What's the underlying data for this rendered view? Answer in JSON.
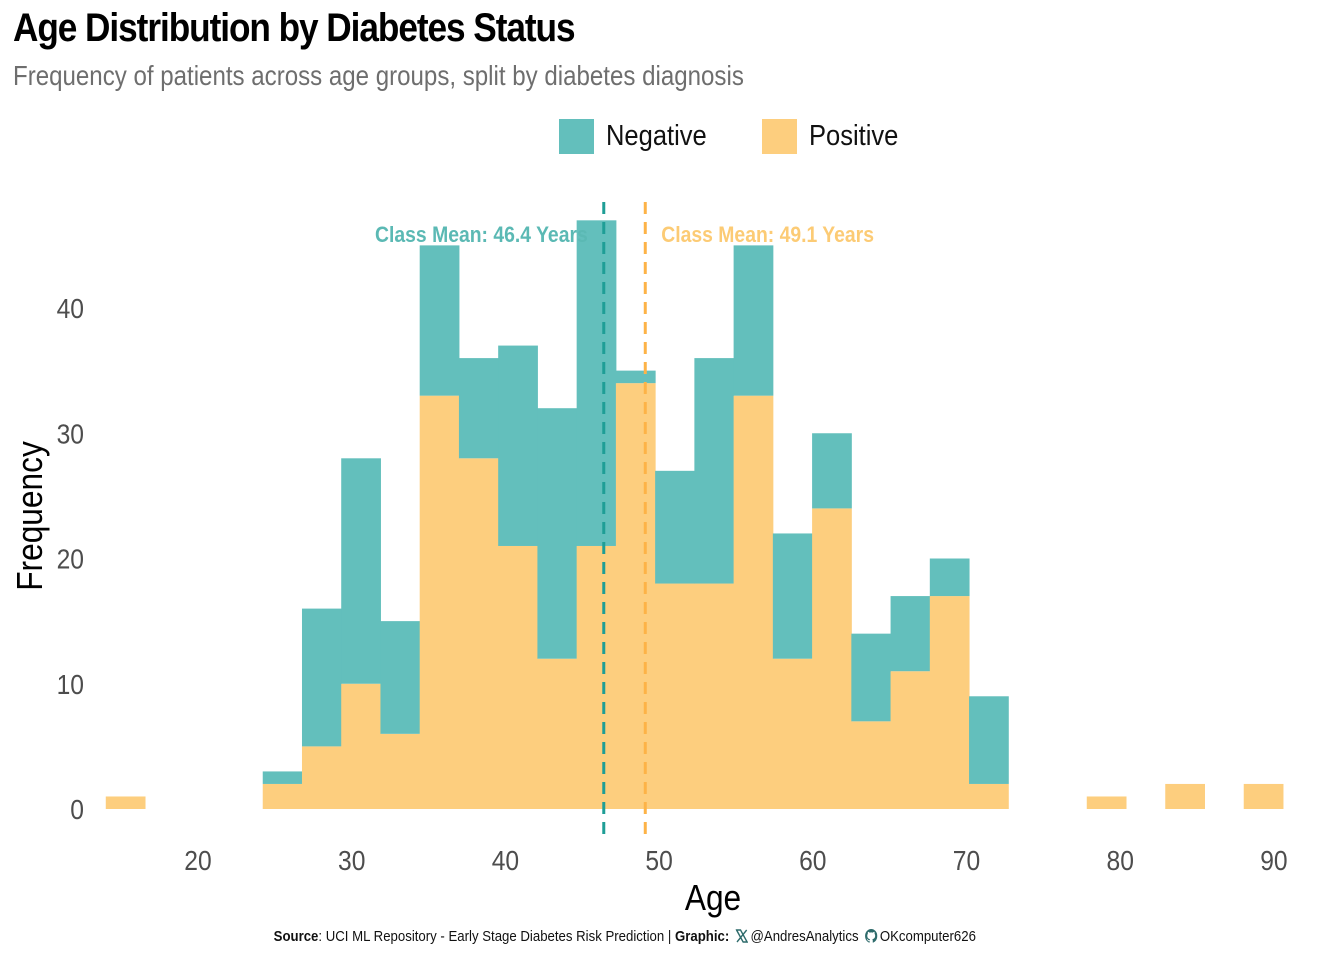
{
  "header": {
    "title": "Age Distribution by Diabetes Status",
    "subtitle": "Frequency of patients across age groups, split by diabetes diagnosis"
  },
  "legend": {
    "items": [
      {
        "label": "Negative",
        "color": "#63BFBC"
      },
      {
        "label": "Positive",
        "color": "#FDCE7E"
      }
    ]
  },
  "caption": {
    "source_label": "Source",
    "source_text": ": UCI ML Repository - Early Stage Diabetes Risk Prediction | ",
    "graphic_label": "Graphic:",
    "twitter_icon": "x-icon",
    "twitter_handle": "@AndresAnalytics",
    "github_icon": "github-icon",
    "github_handle": "OKcomputer626",
    "icon_color": "#2E6B6B"
  },
  "chart_data": {
    "type": "bar",
    "subtype": "stacked-histogram",
    "title": "Age Distribution by Diabetes Status",
    "subtitle": "Frequency of patients across age groups, split by diabetes diagnosis",
    "xlabel": "Age",
    "ylabel": "Frequency",
    "xlim": [
      14.0,
      90.6
    ],
    "ylim": [
      0,
      47
    ],
    "xticks": [
      20,
      30,
      40,
      50,
      60,
      70,
      80,
      90
    ],
    "yticks": [
      0,
      10,
      20,
      30,
      40
    ],
    "grid": false,
    "legend_position": "top",
    "bins": {
      "start": 14.0,
      "width": 2.553,
      "count": 30
    },
    "stack_order": [
      "Positive",
      "Negative"
    ],
    "series": [
      {
        "name": "Positive",
        "color": "#FDCE7E",
        "values": [
          1,
          0,
          0,
          0,
          2,
          5,
          10,
          6,
          33,
          28,
          21,
          12,
          21,
          34,
          18,
          18,
          33,
          12,
          24,
          7,
          11,
          17,
          2,
          0,
          0,
          1,
          0,
          2,
          0,
          2
        ]
      },
      {
        "name": "Negative",
        "color": "#63BFBC",
        "values": [
          0,
          0,
          0,
          0,
          1,
          11,
          18,
          9,
          12,
          8,
          16,
          20,
          26,
          1,
          9,
          18,
          12,
          10,
          6,
          7,
          6,
          3,
          7,
          0,
          0,
          0,
          0,
          0,
          0,
          0
        ]
      }
    ],
    "annotations": [
      {
        "type": "vline",
        "x": 46.4,
        "color": "#1F9E96",
        "style": "dashed",
        "label": "Class Mean: 46.4 Years",
        "label_color": "#5BB9B4",
        "label_side": "left"
      },
      {
        "type": "vline",
        "x": 49.1,
        "color": "#FDB347",
        "style": "dashed",
        "label": "Class Mean: 49.1 Years",
        "label_color": "#FCCB75",
        "label_side": "right"
      }
    ]
  }
}
